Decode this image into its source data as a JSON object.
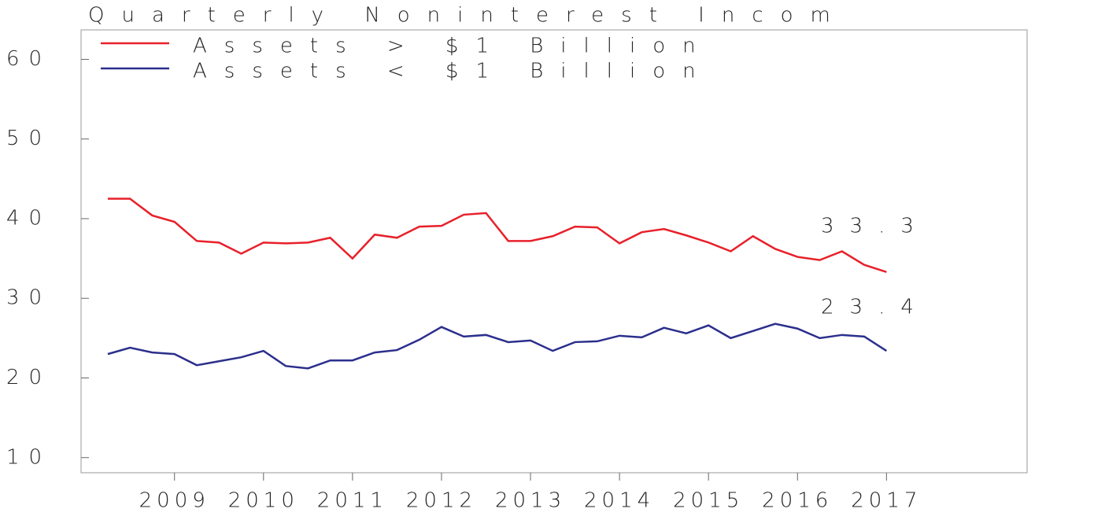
{
  "chart_data": {
    "type": "line",
    "title": "Quarterly Noninterest Incom",
    "x": [
      2008.25,
      2008.5,
      2008.75,
      2009,
      2009.25,
      2009.5,
      2009.75,
      2010,
      2010.25,
      2010.5,
      2010.75,
      2011,
      2011.25,
      2011.5,
      2011.75,
      2012,
      2012.25,
      2012.5,
      2012.75,
      2013,
      2013.25,
      2013.5,
      2013.75,
      2014,
      2014.25,
      2014.5,
      2014.75,
      2015,
      2015.25,
      2015.5,
      2015.75,
      2016,
      2016.25,
      2016.5,
      2016.75,
      2017
    ],
    "series": [
      {
        "name": "Assets > $1 Billion",
        "color": "#e8202a",
        "values": [
          42.5,
          42.5,
          40.4,
          39.6,
          37.2,
          37.0,
          35.6,
          37.0,
          36.9,
          37.0,
          37.6,
          35.0,
          38.0,
          37.6,
          39.0,
          39.1,
          40.5,
          40.7,
          37.2,
          37.2,
          37.8,
          39.0,
          38.9,
          36.9,
          38.3,
          38.7,
          37.9,
          37.0,
          35.9,
          37.8,
          36.2,
          35.2,
          34.8,
          35.9,
          34.2,
          33.3
        ]
      },
      {
        "name": "Assets < $1 Billion",
        "color": "#2b2f8c",
        "values": [
          23.0,
          23.8,
          23.2,
          23.0,
          21.6,
          22.1,
          22.6,
          23.4,
          21.5,
          21.2,
          22.2,
          22.2,
          23.2,
          23.5,
          24.8,
          26.4,
          25.2,
          25.4,
          24.5,
          24.7,
          23.4,
          24.5,
          24.6,
          25.3,
          25.1,
          26.3,
          25.6,
          26.6,
          25.0,
          25.9,
          26.8,
          26.2,
          25.0,
          25.4,
          25.2,
          23.4
        ]
      }
    ],
    "annotations": [
      "33.3",
      "23.4"
    ],
    "xlim": [
      2007.95,
      2018.58
    ],
    "xticks": [
      2009,
      2010,
      2011,
      2012,
      2013,
      2014,
      2015,
      2016,
      2017
    ],
    "ylim": [
      8.1,
      63.7
    ],
    "yticks": [
      10,
      20,
      30,
      40,
      50,
      60
    ],
    "grid": false,
    "legend": "upper left"
  }
}
